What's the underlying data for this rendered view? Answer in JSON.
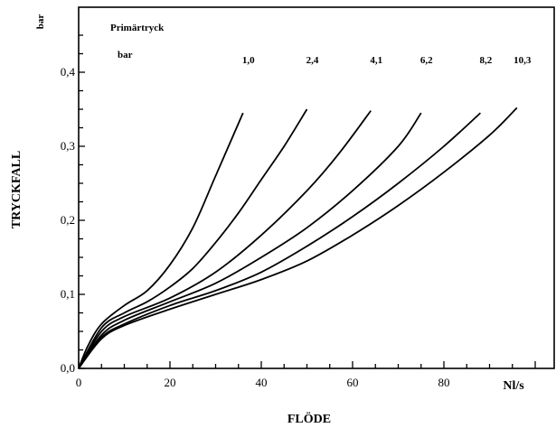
{
  "chart_data": {
    "type": "line",
    "title": "",
    "xlabel": "FLÖDE",
    "x_unit": "Nl/s",
    "ylabel": "TRYCKFALL",
    "y_unit": "bar",
    "legend_title": "Primärtryck",
    "legend_unit": "bar",
    "xlim": [
      0,
      100
    ],
    "ylim": [
      0,
      0.45
    ],
    "x_ticks": [
      0,
      20,
      40,
      60,
      80
    ],
    "x_tick_labels": [
      "0",
      "20",
      "40",
      "60",
      "80"
    ],
    "y_ticks": [
      0,
      0.1,
      0.2,
      0.3,
      0.4
    ],
    "y_tick_labels": [
      "0,0",
      "0,1",
      "0,2",
      "0,3",
      "0,4"
    ],
    "grid": false,
    "series": [
      {
        "name": "1,0",
        "x": [
          0,
          2,
          5,
          10,
          15,
          20,
          25,
          30,
          36
        ],
        "y": [
          0,
          0.03,
          0.06,
          0.085,
          0.105,
          0.14,
          0.19,
          0.26,
          0.345
        ]
      },
      {
        "name": "2,4",
        "x": [
          0,
          5,
          10,
          15,
          20,
          25,
          30,
          35,
          40,
          45,
          50
        ],
        "y": [
          0,
          0.055,
          0.075,
          0.09,
          0.11,
          0.135,
          0.17,
          0.21,
          0.255,
          0.3,
          0.35
        ]
      },
      {
        "name": "4,1",
        "x": [
          0,
          5,
          10,
          20,
          30,
          40,
          50,
          57,
          64
        ],
        "y": [
          0,
          0.05,
          0.07,
          0.095,
          0.13,
          0.18,
          0.24,
          0.29,
          0.348
        ]
      },
      {
        "name": "6,2",
        "x": [
          0,
          5,
          10,
          20,
          30,
          40,
          50,
          60,
          70,
          75
        ],
        "y": [
          0,
          0.045,
          0.065,
          0.09,
          0.115,
          0.15,
          0.19,
          0.24,
          0.3,
          0.345
        ]
      },
      {
        "name": "8,2",
        "x": [
          0,
          5,
          10,
          20,
          30,
          40,
          50,
          60,
          70,
          80,
          88
        ],
        "y": [
          0,
          0.042,
          0.06,
          0.085,
          0.105,
          0.13,
          0.165,
          0.205,
          0.25,
          0.3,
          0.345
        ]
      },
      {
        "name": "10,3",
        "x": [
          0,
          5,
          10,
          20,
          30,
          40,
          50,
          60,
          70,
          80,
          90,
          96
        ],
        "y": [
          0,
          0.04,
          0.058,
          0.08,
          0.1,
          0.12,
          0.145,
          0.18,
          0.22,
          0.265,
          0.315,
          0.352
        ]
      }
    ]
  }
}
